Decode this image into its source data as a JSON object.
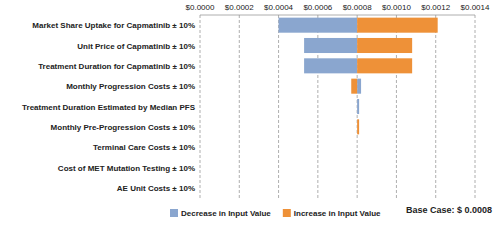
{
  "chart_data": {
    "type": "bar",
    "orientation": "horizontal",
    "categories": [
      "Market Share Uptake for Capmatinib ± 10%",
      "Unit Price of Capmatinib ± 10%",
      "Treatment Duration for Capmatinib ± 10%",
      "Monthly Progression Costs ± 10%",
      "Treatment Duration Estimated by Median PFS",
      "Monthly Pre-Progression Costs ± 10%",
      "Terminal Care Costs ± 10%",
      "Cost of MET Mutation Testing ± 10%",
      "AE Unit Costs ± 10%"
    ],
    "series": [
      {
        "name": "Decrease in Input Value",
        "color": "#8aa6cf",
        "values": [
          0.0004,
          0.00053,
          0.00053,
          0.00082,
          0.00081,
          0.0008,
          0.0008,
          0.0008,
          0.0008
        ]
      },
      {
        "name": "Increase in Input Value",
        "color": "#ee9138",
        "values": [
          0.00121,
          0.00108,
          0.00108,
          0.00077,
          0.0008,
          0.00081,
          0.0008,
          0.0008,
          0.0008
        ]
      }
    ],
    "base_case": {
      "value": 0.0008,
      "label": "Base Case: $ 0.0008"
    },
    "xlim": [
      0,
      0.0014
    ],
    "xticks": [
      {
        "value": 0,
        "label": "$0.0000"
      },
      {
        "value": 0.0002,
        "label": "$0.0002"
      },
      {
        "value": 0.0004,
        "label": "$0.0004"
      },
      {
        "value": 0.0006,
        "label": "$0.0006"
      },
      {
        "value": 0.0008,
        "label": "$0.0008"
      },
      {
        "value": 0.001,
        "label": "$0.0010"
      },
      {
        "value": 0.0012,
        "label": "$0.0012"
      },
      {
        "value": 0.0014,
        "label": "$0.0014"
      }
    ],
    "grid": true,
    "legend": "bottom"
  }
}
